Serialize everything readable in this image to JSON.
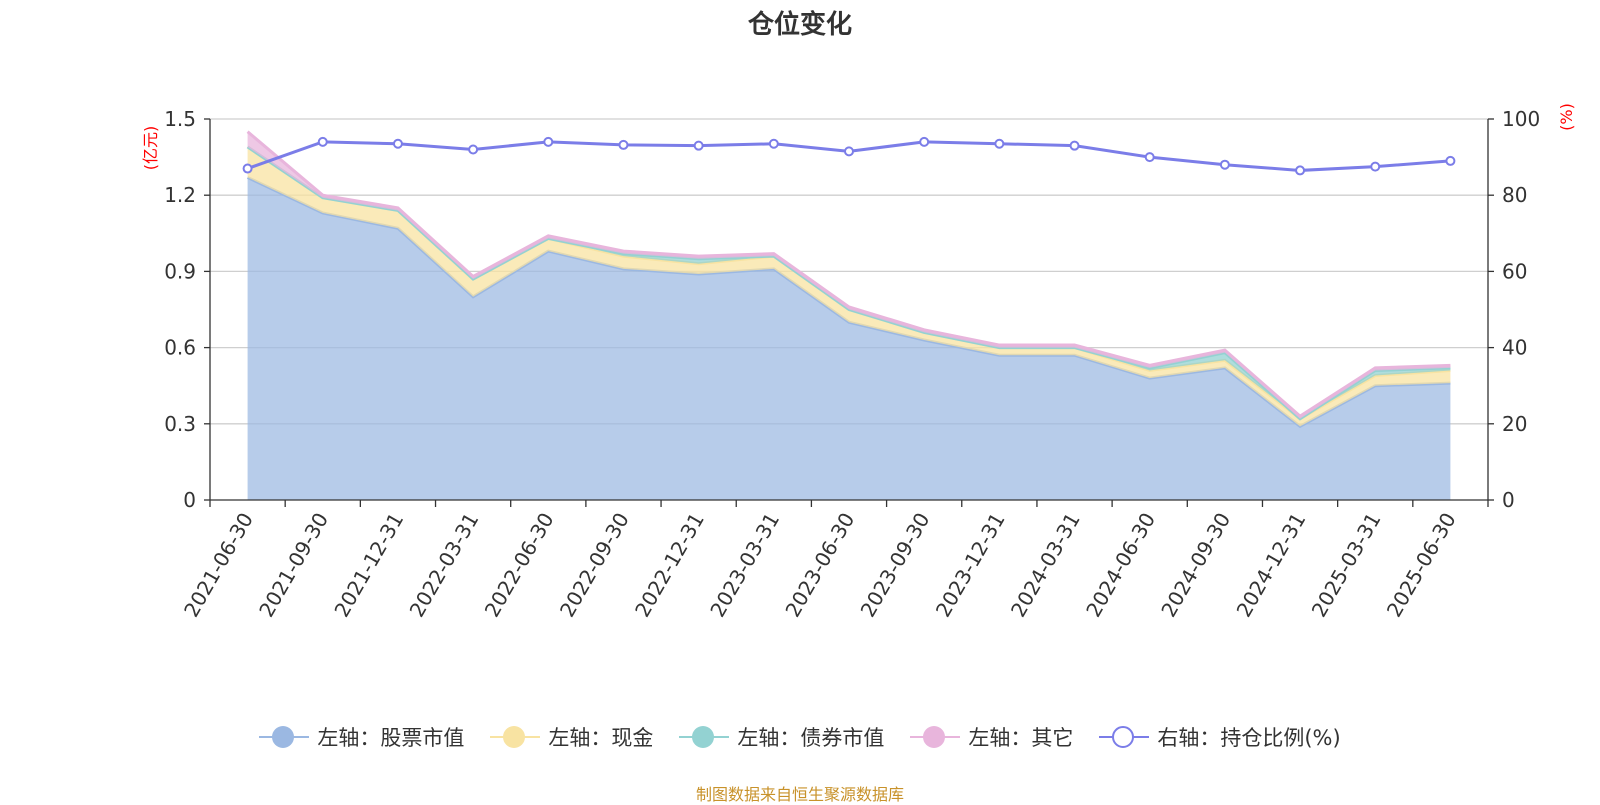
{
  "title": "仓位变化",
  "source_note": "制图数据来自恒生聚源数据库",
  "legend": [
    {
      "label": "左轴：股票市值",
      "color": "#9bb8e2",
      "kind": "filled"
    },
    {
      "label": "左轴：现金",
      "color": "#f8e3a2",
      "kind": "filled"
    },
    {
      "label": "左轴：债券市值",
      "color": "#93d2d2",
      "kind": "filled"
    },
    {
      "label": "左轴：其它",
      "color": "#e8b5dc",
      "kind": "filled"
    },
    {
      "label": "右轴：持仓比例(%)",
      "color": "#7b7de8",
      "kind": "hollow"
    }
  ],
  "chart_data": {
    "type": "area",
    "title": "仓位变化",
    "categories": [
      "2021-06-30",
      "2021-09-30",
      "2021-12-31",
      "2022-03-31",
      "2022-06-30",
      "2022-09-30",
      "2022-12-31",
      "2023-03-31",
      "2023-06-30",
      "2023-09-30",
      "2023-12-31",
      "2024-03-31",
      "2024-06-30",
      "2024-09-30",
      "2024-12-31",
      "2025-03-31",
      "2025-06-30"
    ],
    "left_axis": {
      "unit": "(亿元)",
      "ylim": [
        0,
        1.5
      ],
      "ticks": [
        "0",
        "0.3",
        "0.6",
        "0.9",
        "1.2",
        "1.5"
      ]
    },
    "right_axis": {
      "unit": "(%)",
      "ylim": [
        0,
        100
      ],
      "ticks": [
        "0",
        "20",
        "40",
        "60",
        "80",
        "100"
      ]
    },
    "stacked_series": [
      {
        "name": "左轴：股票市值",
        "color": "#9bb8e2",
        "values": [
          1.27,
          1.13,
          1.07,
          0.8,
          0.98,
          0.91,
          0.89,
          0.91,
          0.7,
          0.63,
          0.57,
          0.57,
          0.48,
          0.52,
          0.29,
          0.45,
          0.46
        ]
      },
      {
        "name": "左轴：现金",
        "color": "#f8e3a2",
        "values": [
          0.12,
          0.06,
          0.07,
          0.07,
          0.05,
          0.05,
          0.04,
          0.05,
          0.05,
          0.03,
          0.03,
          0.03,
          0.03,
          0.03,
          0.03,
          0.04,
          0.05
        ]
      },
      {
        "name": "左轴：债券市值",
        "color": "#93d2d2",
        "values": [
          0,
          0,
          0,
          0,
          0,
          0.01,
          0.02,
          0,
          0,
          0,
          0,
          0,
          0.01,
          0.03,
          0,
          0.02,
          0.01
        ]
      },
      {
        "name": "左轴：其它",
        "color": "#e8b5dc",
        "values": [
          0.06,
          0.01,
          0.01,
          0.01,
          0.01,
          0.01,
          0.01,
          0.01,
          0.01,
          0.01,
          0.01,
          0.01,
          0.01,
          0.01,
          0.01,
          0.01,
          0.01
        ]
      }
    ],
    "line_series": {
      "name": "右轴：持仓比例(%)",
      "color": "#7b7de8",
      "axis": "right",
      "values": [
        87,
        94,
        93.5,
        92,
        94,
        93.2,
        93,
        93.5,
        91.5,
        94,
        93.5,
        93,
        90,
        88,
        86.5,
        87.5,
        89
      ]
    },
    "grid": true,
    "legend_position": "bottom"
  }
}
